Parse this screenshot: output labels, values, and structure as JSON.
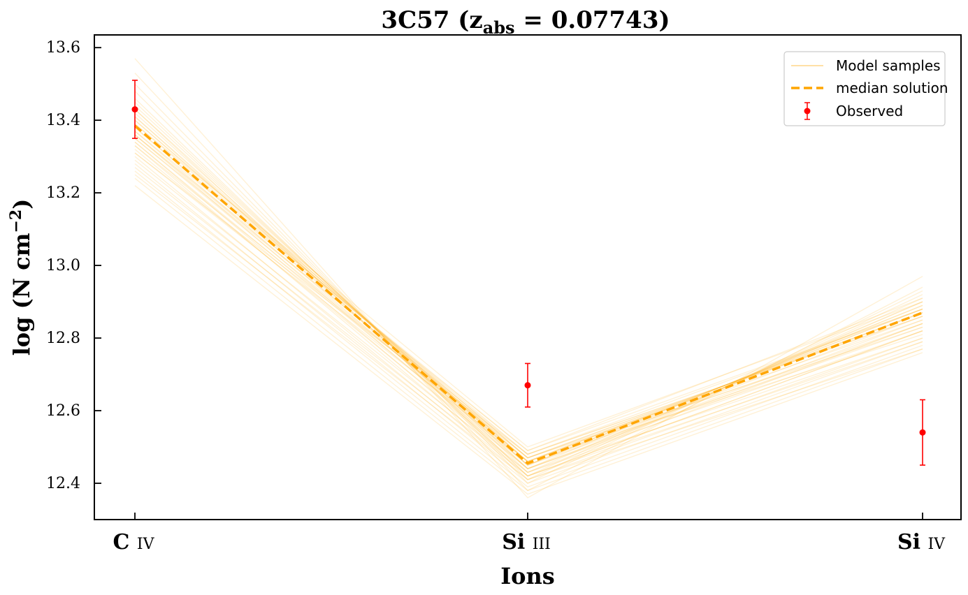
{
  "chart_data": {
    "type": "line",
    "title": "3C57 (z_abs = 0.07743)",
    "title_main": "3C57 (z",
    "title_sub": "abs",
    "title_tail": " = 0.07743)",
    "xlabel": "Ions",
    "ylabel": "log (N cm",
    "ylabel_sup": "−2",
    "ylabel_tail": ")",
    "categories": [
      {
        "main": "C",
        "sub": "IV"
      },
      {
        "main": "Si",
        "sub": "III"
      },
      {
        "main": "Si",
        "sub": "IV"
      }
    ],
    "yticks": [
      "12.4",
      "12.6",
      "12.8",
      "13.0",
      "13.2",
      "13.4",
      "13.6"
    ],
    "ylim": [
      12.3,
      13.635
    ],
    "grid": false,
    "legend_position": "top-right",
    "series": [
      {
        "name": "Model samples",
        "style": "thin translucent lines",
        "color": "#ffa500",
        "samples": [
          [
            13.57,
            12.36,
            12.97
          ],
          [
            13.53,
            12.38,
            12.94
          ],
          [
            13.5,
            12.4,
            12.93
          ],
          [
            13.48,
            12.41,
            12.92
          ],
          [
            13.46,
            12.42,
            12.91
          ],
          [
            13.45,
            12.43,
            12.9
          ],
          [
            13.44,
            12.44,
            12.9
          ],
          [
            13.43,
            12.45,
            12.89
          ],
          [
            13.42,
            12.45,
            12.89
          ],
          [
            13.41,
            12.46,
            12.88
          ],
          [
            13.4,
            12.46,
            12.88
          ],
          [
            13.4,
            12.47,
            12.87
          ],
          [
            13.39,
            12.47,
            12.87
          ],
          [
            13.38,
            12.46,
            12.87
          ],
          [
            13.38,
            12.48,
            12.86
          ],
          [
            13.37,
            12.45,
            12.86
          ],
          [
            13.37,
            12.49,
            12.88
          ],
          [
            13.36,
            12.47,
            12.85
          ],
          [
            13.36,
            12.44,
            12.85
          ],
          [
            13.35,
            12.46,
            12.84
          ],
          [
            13.35,
            12.48,
            12.86
          ],
          [
            13.34,
            12.43,
            12.84
          ],
          [
            13.34,
            12.45,
            12.83
          ],
          [
            13.33,
            12.47,
            12.83
          ],
          [
            13.33,
            12.42,
            12.82
          ],
          [
            13.32,
            12.44,
            12.82
          ],
          [
            13.31,
            12.46,
            12.81
          ],
          [
            13.3,
            12.41,
            12.8
          ],
          [
            13.29,
            12.43,
            12.8
          ],
          [
            13.28,
            12.4,
            12.79
          ],
          [
            13.27,
            12.42,
            12.79
          ],
          [
            13.26,
            12.39,
            12.78
          ],
          [
            13.25,
            12.41,
            12.77
          ],
          [
            13.24,
            12.38,
            12.77
          ],
          [
            13.22,
            12.37,
            12.76
          ],
          [
            13.39,
            12.5,
            12.9
          ],
          [
            13.41,
            12.44,
            12.84
          ],
          [
            13.36,
            12.49,
            12.91
          ],
          [
            13.43,
            12.42,
            12.82
          ],
          [
            13.31,
            12.48,
            12.88
          ]
        ]
      },
      {
        "name": "median solution",
        "style": "dashed",
        "color": "#ffa500",
        "values": [
          13.385,
          12.455,
          12.87
        ]
      },
      {
        "name": "Observed",
        "style": "points with error bars",
        "color": "#ff0000",
        "values": [
          13.43,
          12.67,
          12.54
        ],
        "errors": [
          0.08,
          0.06,
          0.09
        ]
      }
    ]
  }
}
